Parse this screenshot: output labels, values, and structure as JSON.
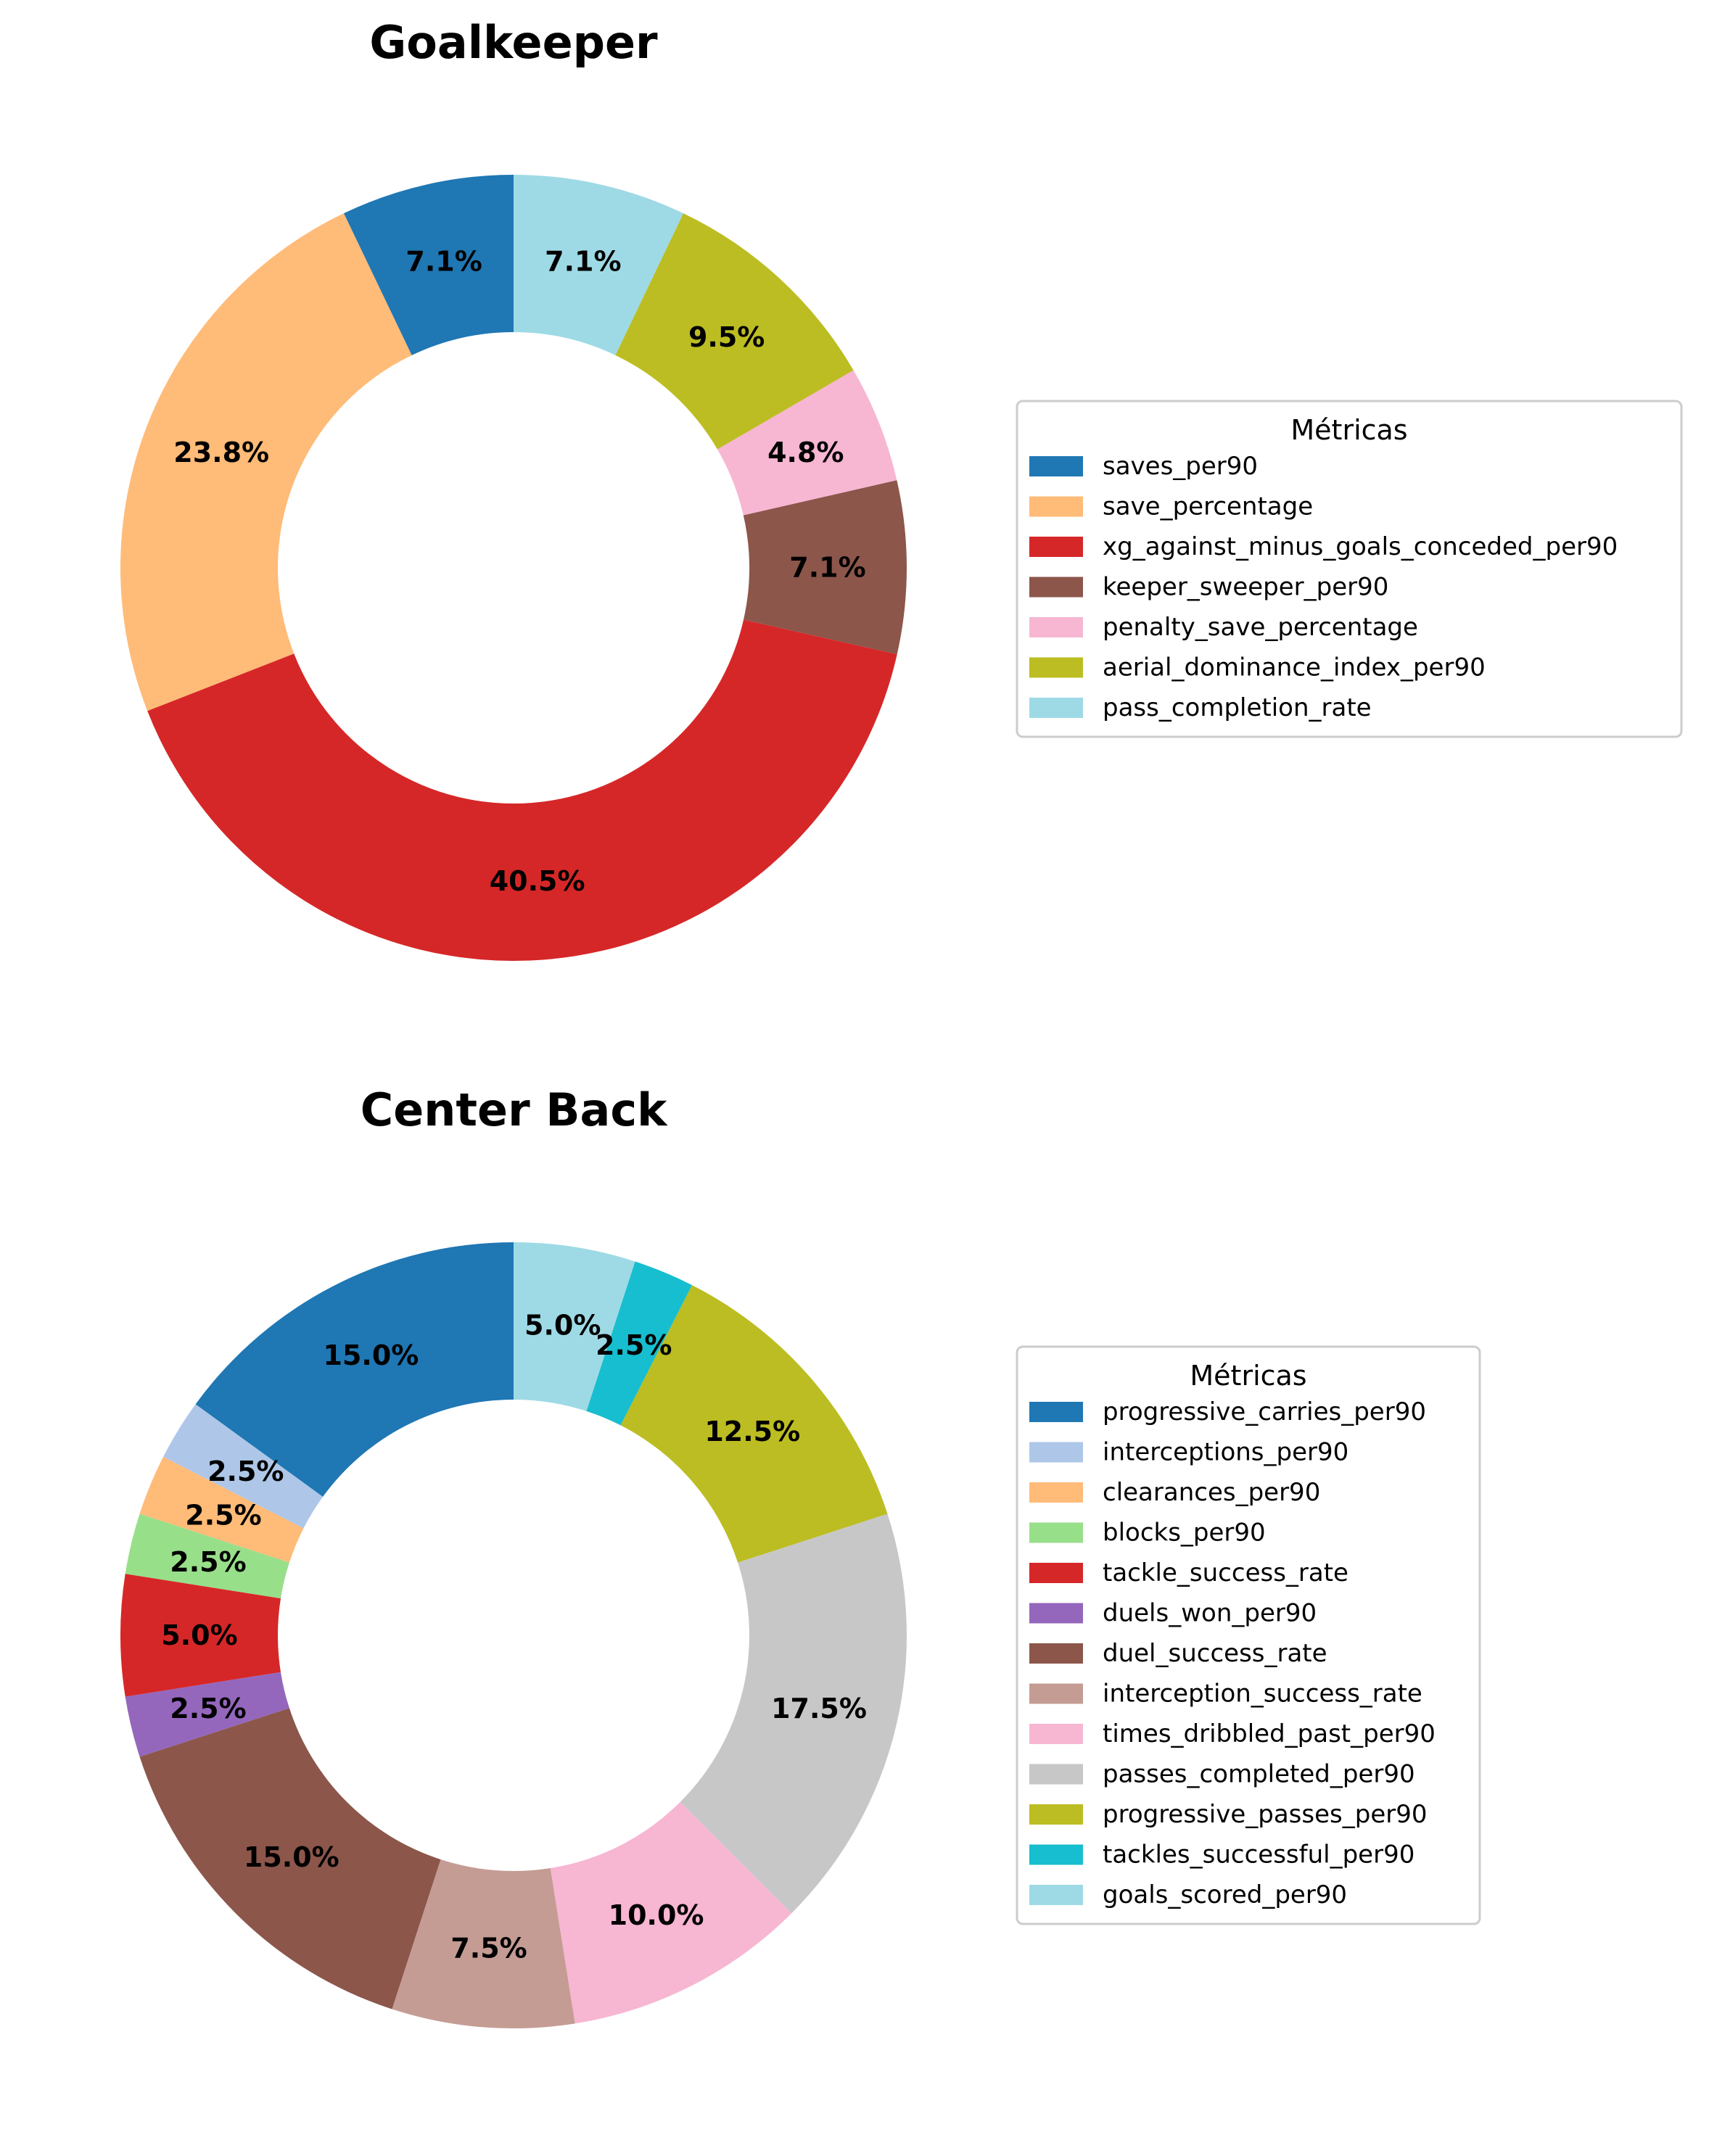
{
  "chart_data": [
    {
      "type": "pie",
      "style": "donut",
      "title": "Goalkeeper",
      "legend_title": "Métricas",
      "legend_position": "right",
      "start_angle_deg": 90,
      "direction": "counterclockwise",
      "slices": [
        {
          "label": "saves_per90",
          "value": 7.1,
          "value_label": "7.1%",
          "color": "#1f77b4"
        },
        {
          "label": "save_percentage",
          "value": 23.8,
          "value_label": "23.8%",
          "color": "#ffbb78"
        },
        {
          "label": "xg_against_minus_goals_conceded_per90",
          "value": 40.5,
          "value_label": "40.5%",
          "color": "#d62728"
        },
        {
          "label": "keeper_sweeper_per90",
          "value": 7.1,
          "value_label": "7.1%",
          "color": "#8c564b"
        },
        {
          "label": "penalty_save_percentage",
          "value": 4.8,
          "value_label": "4.8%",
          "color": "#f7b6d2"
        },
        {
          "label": "aerial_dominance_index_per90",
          "value": 9.5,
          "value_label": "9.5%",
          "color": "#bcbd22"
        },
        {
          "label": "pass_completion_rate",
          "value": 7.1,
          "value_label": "7.1%",
          "color": "#9edae5"
        }
      ]
    },
    {
      "type": "pie",
      "style": "donut",
      "title": "Center Back",
      "legend_title": "Métricas",
      "legend_position": "right",
      "start_angle_deg": 90,
      "direction": "counterclockwise",
      "slices": [
        {
          "label": "progressive_carries_per90",
          "value": 15.0,
          "value_label": "15.0%",
          "color": "#1f77b4"
        },
        {
          "label": "interceptions_per90",
          "value": 2.5,
          "value_label": "2.5%",
          "color": "#aec7e8"
        },
        {
          "label": "clearances_per90",
          "value": 2.5,
          "value_label": "2.5%",
          "color": "#ffbb78"
        },
        {
          "label": "blocks_per90",
          "value": 2.5,
          "value_label": "2.5%",
          "color": "#98df8a"
        },
        {
          "label": "tackle_success_rate",
          "value": 5.0,
          "value_label": "5.0%",
          "color": "#d62728"
        },
        {
          "label": "duels_won_per90",
          "value": 2.5,
          "value_label": "2.5%",
          "color": "#9467bd"
        },
        {
          "label": "duel_success_rate",
          "value": 15.0,
          "value_label": "15.0%",
          "color": "#8c564b"
        },
        {
          "label": "interception_success_rate",
          "value": 7.5,
          "value_label": "7.5%",
          "color": "#c49c94"
        },
        {
          "label": "times_dribbled_past_per90",
          "value": 10.0,
          "value_label": "10.0%",
          "color": "#f7b6d2"
        },
        {
          "label": "passes_completed_per90",
          "value": 17.5,
          "value_label": "17.5%",
          "color": "#c7c7c7"
        },
        {
          "label": "progressive_passes_per90",
          "value": 12.5,
          "value_label": "12.5%",
          "color": "#bcbd22"
        },
        {
          "label": "tackles_successful_per90",
          "value": 2.5,
          "value_label": "2.5%",
          "color": "#17becf"
        },
        {
          "label": "goals_scored_per90",
          "value": 5.0,
          "value_label": "5.0%",
          "color": "#9edae5"
        }
      ]
    }
  ]
}
